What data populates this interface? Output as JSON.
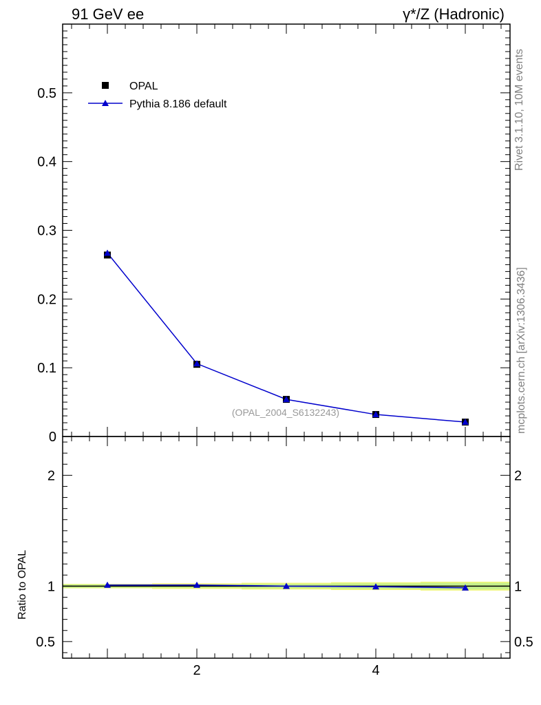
{
  "header": {
    "left_title": "91 GeV ee",
    "right_title": "γ*/Z (Hadronic)"
  },
  "side_labels": {
    "rivet": "Rivet 3.1.10,  10M events",
    "mcplots": "mcplots.cern.ch [arXiv:1306.3436]"
  },
  "chart_data": [
    {
      "type": "line",
      "panel": "main",
      "x": [
        1,
        2,
        3,
        4,
        5
      ],
      "series": [
        {
          "name": "OPAL",
          "marker": "square",
          "color": "#000000",
          "values": [
            0.264,
            0.105,
            0.054,
            0.032,
            0.021
          ]
        },
        {
          "name": "Pythia 8.186 default",
          "marker": "triangle",
          "color": "#0000cc",
          "values": [
            0.267,
            0.106,
            0.054,
            0.032,
            0.021
          ]
        }
      ],
      "xlim": [
        0.5,
        5.5
      ],
      "ylim": [
        0,
        0.6
      ],
      "yticks": [
        0,
        0.1,
        0.2,
        0.3,
        0.4,
        0.5
      ],
      "ytick_labels": [
        "0",
        "0.1",
        "0.2",
        "0.3",
        "0.4",
        "0.5"
      ],
      "watermark": "(OPAL_2004_S6132243)",
      "legend_position": "top-left"
    },
    {
      "type": "line",
      "panel": "ratio",
      "ylabel": "Ratio to OPAL",
      "x": [
        1,
        2,
        3,
        4,
        5
      ],
      "series": [
        {
          "name": "Pythia 8.186 default",
          "marker": "triangle",
          "color": "#0000cc",
          "values": [
            1.01,
            1.01,
            1.0,
            0.995,
            0.985
          ]
        }
      ],
      "band_inner": [
        0.015,
        0.015,
        0.02,
        0.025,
        0.03
      ],
      "band_outer": [
        0.02,
        0.025,
        0.03,
        0.035,
        0.04
      ],
      "xlim": [
        0.5,
        5.5
      ],
      "ylim": [
        0.35,
        2.35
      ],
      "yticks": [
        0.5,
        1,
        2
      ],
      "ytick_labels": [
        "0.5",
        "1",
        "2"
      ],
      "xticks": [
        2,
        4
      ],
      "xtick_labels": [
        "2",
        "4"
      ]
    }
  ]
}
